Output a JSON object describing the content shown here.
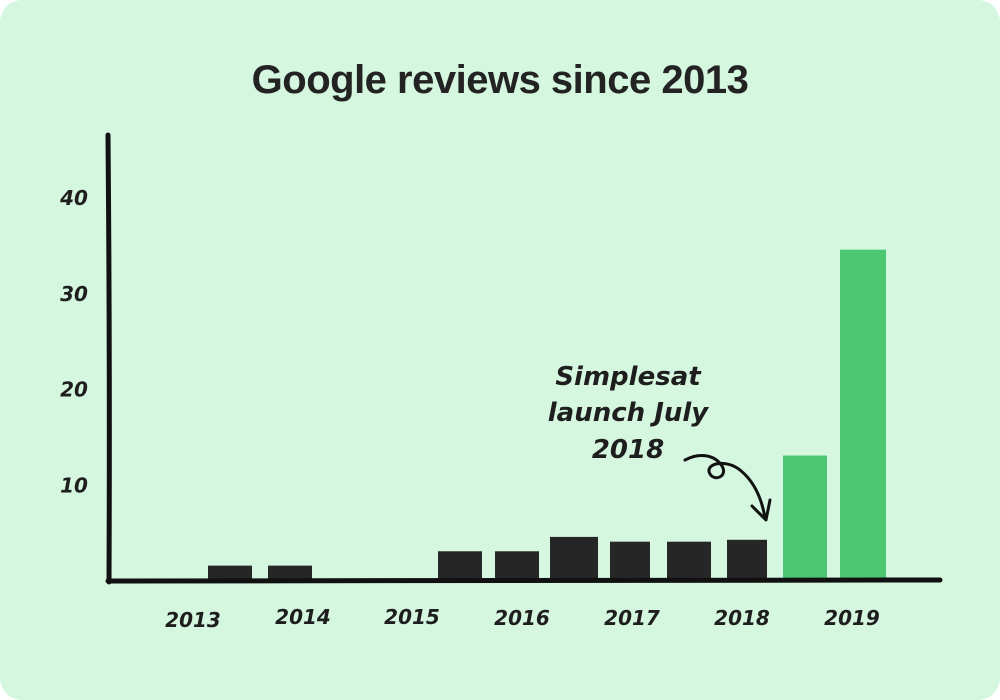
{
  "title": "Google reviews since 2013",
  "annotation": [
    "Simplesat",
    "launch July",
    "2018"
  ],
  "colors": {
    "background": "#d5f6df",
    "dark_bar": "#262626",
    "highlight_bar": "#4cc873",
    "axis": "#111111"
  },
  "chart_data": {
    "type": "bar",
    "title": "Google reviews since 2013",
    "xlabel": "",
    "ylabel": "",
    "ylim": [
      0,
      47
    ],
    "y_ticks": [
      10,
      20,
      30,
      40
    ],
    "x_labels": [
      "2013",
      "2014",
      "2015",
      "2016",
      "2017",
      "2018",
      "2019"
    ],
    "values": [
      1.5,
      1.5,
      3,
      3,
      4.5,
      4,
      4,
      4.2,
      13,
      34.5
    ],
    "highlight": [
      false,
      false,
      false,
      false,
      false,
      false,
      false,
      false,
      true,
      true
    ],
    "grid": false,
    "legend": "none"
  }
}
